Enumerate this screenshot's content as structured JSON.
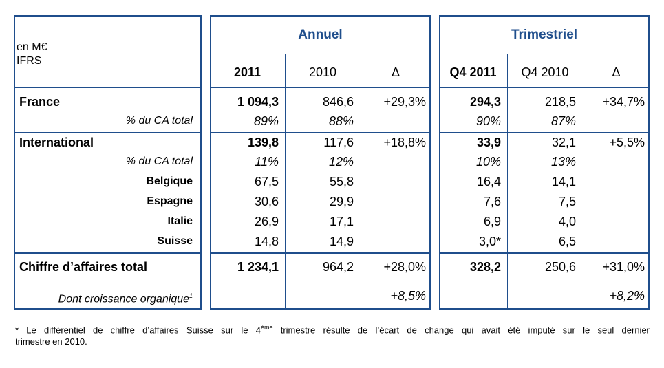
{
  "header": {
    "unit_line1": "en M€",
    "unit_line2": "IFRS",
    "annuel": "Annuel",
    "trimestriel": "Trimestriel",
    "col_2011": "2011",
    "col_2010": "2010",
    "col_delta": "Δ",
    "col_q42011": "Q4 2011",
    "col_q42010": "Q4 2010",
    "col_qdelta": "Δ"
  },
  "rows": {
    "france": {
      "label": "France",
      "y2011": "1 094,3",
      "y2010": "846,6",
      "dy": "+29,3%",
      "q2011": "294,3",
      "q2010": "218,5",
      "dq": "+34,7%"
    },
    "france_pct": {
      "label": "% du CA total",
      "y2011": "89%",
      "y2010": "88%",
      "q2011": "90%",
      "q2010": "87%"
    },
    "intl": {
      "label": "International",
      "y2011": "139,8",
      "y2010": "117,6",
      "dy": "+18,8%",
      "q2011": "33,9",
      "q2010": "32,1",
      "dq": "+5,5%"
    },
    "intl_pct": {
      "label": "% du CA total",
      "y2011": "11%",
      "y2010": "12%",
      "q2011": "10%",
      "q2010": "13%"
    },
    "belgique": {
      "label": "Belgique",
      "y2011": "67,5",
      "y2010": "55,8",
      "q2011": "16,4",
      "q2010": "14,1"
    },
    "espagne": {
      "label": "Espagne",
      "y2011": "30,6",
      "y2010": "29,9",
      "q2011": "7,6",
      "q2010": "7,5"
    },
    "italie": {
      "label": "Italie",
      "y2011": "26,9",
      "y2010": "17,1",
      "q2011": "6,9",
      "q2010": "4,0"
    },
    "suisse": {
      "label": "Suisse",
      "y2011": "14,8",
      "y2010": "14,9",
      "q2011": "3,0*",
      "q2010": "6,5"
    },
    "total": {
      "label": "Chiffre d’affaires total",
      "y2011": "1 234,1",
      "y2010": "964,2",
      "dy": "+28,0%",
      "q2011": "328,2",
      "q2010": "250,6",
      "dq": "+31,0%"
    },
    "organic": {
      "label": "Dont croissance organique",
      "sup": "1",
      "dy": "+8,5%",
      "dq": "+8,2%"
    }
  },
  "footnote": {
    "part1": "* Le différentiel de chiffre d’affaires Suisse sur le 4",
    "sup": "ème",
    "part2": " trimestre résulte de l’écart de change qui avait été imputé sur le seul dernier",
    "line2": "trimestre en 2010."
  }
}
